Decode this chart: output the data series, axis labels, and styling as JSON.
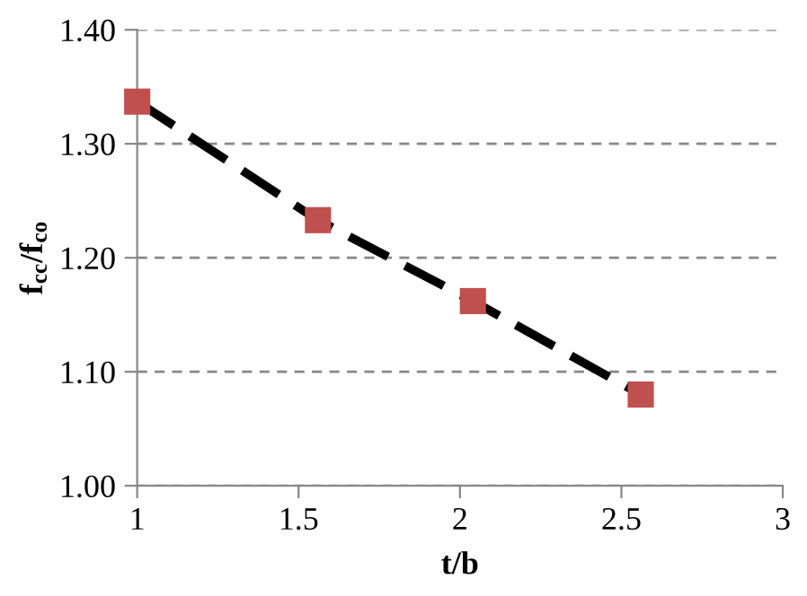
{
  "chart_data": {
    "type": "line",
    "xlabel": "t/b",
    "ylabel": "f$_{cc}$/f$_{co}$",
    "series": [
      {
        "color": "#000000",
        "x": [
          1,
          1.56,
          2.04,
          2.56
        ],
        "values": [
          1.337,
          1.233,
          1.162,
          1.08
        ],
        "line_style": "dashed",
        "marker": "none"
      },
      {
        "type": "scatter",
        "color": "#c0504d",
        "x": [
          1,
          1.56,
          2.04,
          2.56
        ],
        "values": [
          1.337,
          1.233,
          1.162,
          1.08
        ],
        "marker": "square"
      }
    ],
    "xlim": [
      1,
      3
    ],
    "xticks": [
      1,
      {
        "value": 1.5,
        "label": "1.5"
      },
      2,
      {
        "value": 2.5,
        "label": "2.5"
      },
      3
    ],
    "ylim": [
      1.0,
      1.4
    ],
    "yticks": [
      {
        "value": 1.0,
        "label": "1.00"
      },
      {
        "value": 1.1,
        "label": "1.10"
      },
      {
        "value": 1.2,
        "label": "1.20"
      },
      {
        "value": 1.3,
        "label": "1.30"
      },
      {
        "value": 1.4,
        "label": "1.40"
      }
    ],
    "grid": "y",
    "legend": false
  }
}
